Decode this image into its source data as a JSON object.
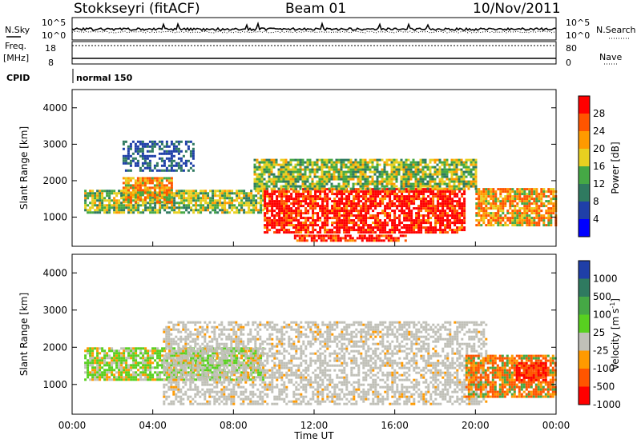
{
  "header": {
    "station": "Stokkseyri (fitACF)",
    "beam": "Beam 01",
    "date": "10/Nov/2011"
  },
  "top_panels": {
    "nsky_label": "N.Sky",
    "nsky_ticks": [
      "10^5",
      "10^0"
    ],
    "nsearch_label": "N.Search",
    "nsearch_ticks": [
      "10^5",
      "10^0"
    ],
    "freq_label": "Freq.",
    "freq_unit": "[MHz]",
    "freq_ticks": [
      "18",
      "8"
    ],
    "nave_label": "Nave",
    "nave_ticks": [
      "80",
      "0"
    ],
    "cpid_label": "CPID",
    "cpid_value": "normal 150"
  },
  "chart_data": [
    {
      "type": "heatmap",
      "name": "power",
      "ylabel": "Slant Range [km]",
      "yticks": [
        "1000",
        "2000",
        "3000",
        "4000"
      ],
      "ylim": [
        200,
        4500
      ],
      "xlim": [
        0,
        24
      ],
      "colorbar_label": "Power [dB]",
      "colorbar_ticks": [
        "28",
        "24",
        "20",
        "16",
        "12",
        "8",
        "4"
      ],
      "colorbar_colors": [
        "#ff0000",
        "#ff5500",
        "#ff9a00",
        "#e8d020",
        "#45a845",
        "#2f7a60",
        "#1f3fa8",
        "#0000ff"
      ],
      "regions": [
        {
          "t0": 0.6,
          "t1": 9.5,
          "r0": 1150,
          "r1": 1750,
          "level": "mid"
        },
        {
          "t0": 2.5,
          "t1": 5.0,
          "r0": 1400,
          "r1": 2100,
          "level": "high"
        },
        {
          "t0": 9.5,
          "t1": 19.5,
          "r0": 600,
          "r1": 1800,
          "level": "max"
        },
        {
          "t0": 11.0,
          "t1": 16.5,
          "r0": 380,
          "r1": 520,
          "level": "max"
        },
        {
          "t0": 20.0,
          "t1": 24.0,
          "r0": 800,
          "r1": 1800,
          "level": "high"
        },
        {
          "t0": 2.5,
          "t1": 6.0,
          "r0": 2300,
          "r1": 3100,
          "level": "low"
        },
        {
          "t0": 9.0,
          "t1": 20.0,
          "r0": 1800,
          "r1": 2600,
          "level": "mid"
        }
      ]
    },
    {
      "type": "heatmap",
      "name": "velocity",
      "ylabel": "Slant Range [km]",
      "yticks": [
        "1000",
        "2000",
        "3000",
        "4000"
      ],
      "ylim": [
        200,
        4500
      ],
      "xlim": [
        0,
        24
      ],
      "xlabel": "Time UT",
      "xticks": [
        "00:00",
        "04:00",
        "08:00",
        "12:00",
        "16:00",
        "20:00",
        "00:00"
      ],
      "colorbar_label": "Velocity [m s",
      "colorbar_label_sup": "-1",
      "colorbar_label_end": "]",
      "colorbar_ticks": [
        "1000",
        "500",
        "100",
        "25",
        "-25",
        "-100",
        "-500",
        "-1000"
      ],
      "colorbar_colors": [
        "#1f3fa8",
        "#2f7a60",
        "#45a845",
        "#58d020",
        "#c0c0b8",
        "#ff9a00",
        "#ff5500",
        "#ff0000"
      ],
      "regions": [
        {
          "t0": 0.6,
          "t1": 9.5,
          "r0": 1150,
          "r1": 2000,
          "level": "greenish"
        },
        {
          "t0": 4.5,
          "t1": 20.5,
          "r0": 500,
          "r1": 2700,
          "level": "grey"
        },
        {
          "t0": 19.5,
          "t1": 24.0,
          "r0": 700,
          "r1": 1800,
          "level": "negative"
        },
        {
          "t0": 22.0,
          "t1": 23.5,
          "r0": 1100,
          "r1": 1600,
          "level": "strong-negative"
        }
      ]
    }
  ]
}
